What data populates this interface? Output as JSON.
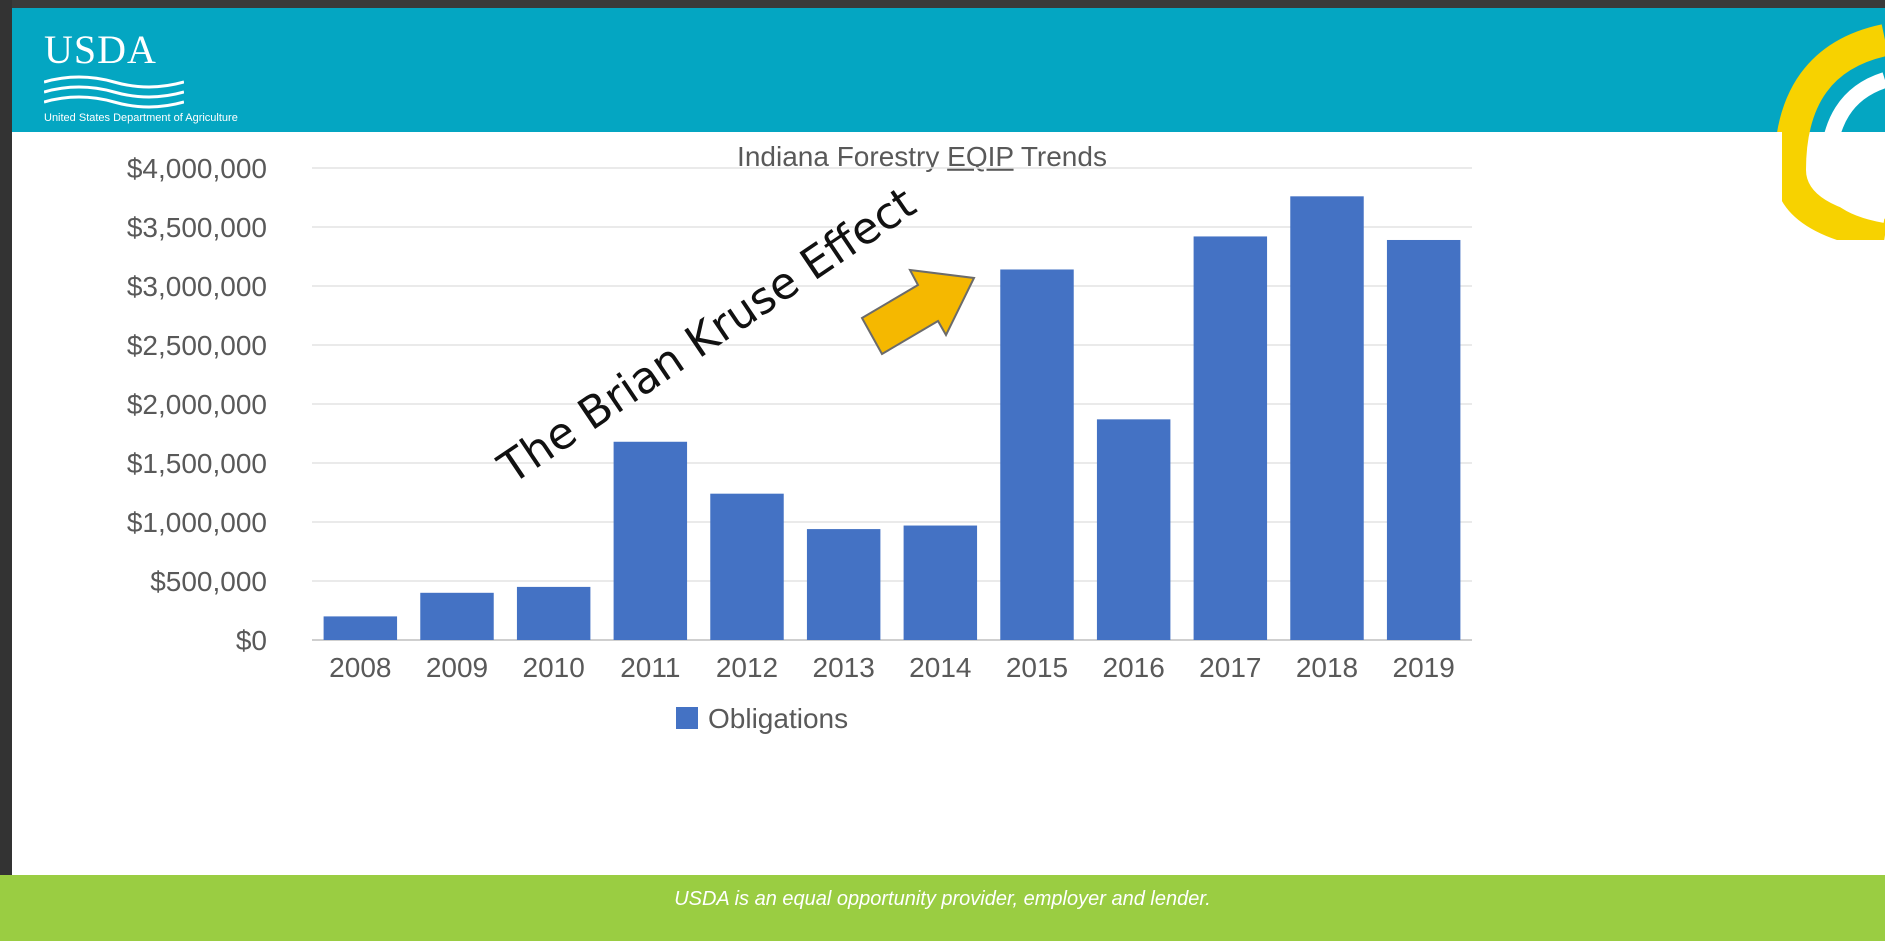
{
  "header": {
    "logo_text": "USDA",
    "agency_name": "United States Department of Agriculture"
  },
  "footer": {
    "text": "USDA is an equal opportunity provider, employer and lender."
  },
  "colors": {
    "header": "#04a6c2",
    "footer": "#9acd42",
    "bar": "#4472c4",
    "arrow": "#f5b800",
    "deco": "#f7d200"
  },
  "annotation": {
    "text": "The Brian Kruse Effect"
  },
  "chart_data": {
    "type": "bar",
    "title_prefix": "Indiana Forestry ",
    "title_underlined": "EQIP",
    "title_suffix": " Trends",
    "title": "Indiana Forestry EQIP Trends",
    "categories": [
      "2008",
      "2009",
      "2010",
      "2011",
      "2012",
      "2013",
      "2014",
      "2015",
      "2016",
      "2017",
      "2018",
      "2019"
    ],
    "series": [
      {
        "name": "Obligations",
        "values": [
          200000,
          400000,
          450000,
          1680000,
          1240000,
          940000,
          970000,
          3140000,
          1870000,
          3420000,
          3760000,
          3390000
        ]
      }
    ],
    "ylim": [
      0,
      4000000
    ],
    "yticks": [
      0,
      500000,
      1000000,
      1500000,
      2000000,
      2500000,
      3000000,
      3500000,
      4000000
    ],
    "ytick_labels": [
      "$0",
      "$500,000",
      "$1,000,000",
      "$1,500,000",
      "$2,000,000",
      "$2,500,000",
      "$3,000,000",
      "$3,500,000",
      "$4,000,000"
    ],
    "grid": true,
    "legend": "bottom"
  }
}
